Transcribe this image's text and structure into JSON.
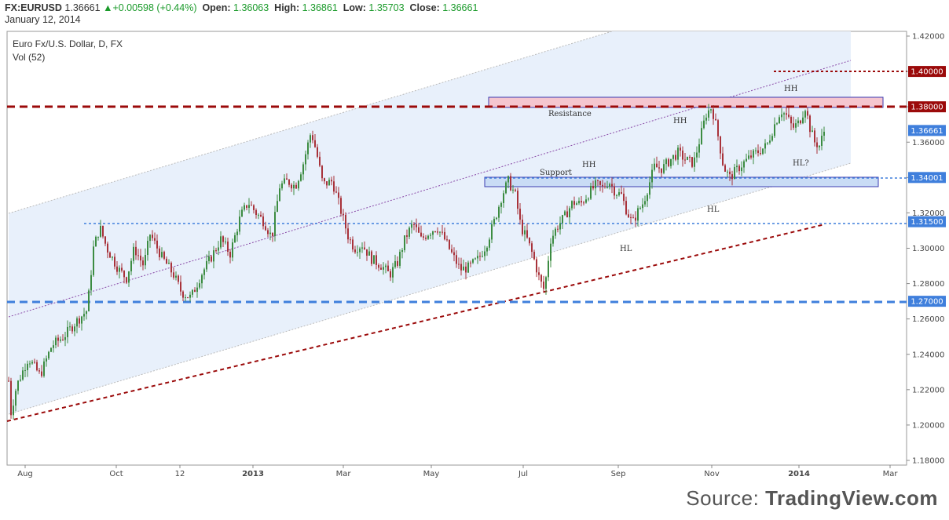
{
  "header": {
    "symbol": "FX:EURUSD",
    "last": "1.36661",
    "change": "+0.00598 (+0.44%)",
    "change_arrow": "▲",
    "open_label": "Open:",
    "open": "1.36063",
    "high_label": "High:",
    "high": "1.36861",
    "low_label": "Low:",
    "low": "1.35703",
    "close_label": "Close:",
    "close": "1.36661",
    "date": "January 12, 2014"
  },
  "legend": {
    "title": "Euro Fx/U.S. Dollar, D, FX",
    "indicator": "Vol (52)"
  },
  "source": {
    "prefix": "Source: ",
    "brand": "TradingView.com"
  },
  "colors": {
    "up": "#1a9a2a",
    "candle_up": "#3c8c42",
    "candle_down": "#a8323a",
    "channel_fill": "#e8f0fb",
    "resistance_zone": "#f5c6cf",
    "support_zone": "#c9dcf5",
    "dark_red": "#9b0a0a",
    "blue": "#3f7fdc"
  },
  "chart_data": {
    "type": "candlestick",
    "instrument": "EURUSD",
    "timeframe": "D",
    "ylim": [
      1.18,
      1.42
    ],
    "y_ticks": [
      "1.42000",
      "1.40000",
      "1.38000",
      "1.36000",
      "1.34000",
      "1.32000",
      "1.30000",
      "1.28000",
      "1.26000",
      "1.24000",
      "1.22000",
      "1.20000",
      "1.18000"
    ],
    "x_ticks": [
      "Aug",
      "Oct",
      "12",
      "2013",
      "Mar",
      "May",
      "Jul",
      "Sep",
      "Nov",
      "2014",
      "Mar"
    ],
    "price_labels": [
      {
        "text": "1.40000",
        "value": 1.4,
        "style": "dark-red"
      },
      {
        "text": "1.38000",
        "value": 1.38,
        "style": "dark-red"
      },
      {
        "text": "1.36661",
        "value": 1.36661,
        "style": "blue"
      },
      {
        "text": "1.34001",
        "value": 1.34001,
        "style": "blue"
      },
      {
        "text": "1.31500",
        "value": 1.315,
        "style": "blue"
      },
      {
        "text": "1.27000",
        "value": 1.27,
        "style": "blue"
      }
    ],
    "horizontal_lines": [
      {
        "value": 1.38,
        "style": "dark-red-dashed-thick"
      },
      {
        "value": 1.4,
        "style": "dark-red-dotted"
      },
      {
        "value": 1.34001,
        "style": "blue-dashed"
      },
      {
        "value": 1.315,
        "style": "blue-dashed"
      },
      {
        "value": 1.27,
        "style": "blue-dashed-thick"
      }
    ],
    "zones": [
      {
        "name": "Resistance",
        "from": 1.38,
        "to": 1.386
      },
      {
        "name": "Support",
        "from": 1.336,
        "to": 1.342
      }
    ],
    "annotations": [
      "Resistance",
      "Support",
      "HH",
      "HH",
      "HH",
      "HL",
      "HL",
      "HL?"
    ],
    "price_path": [
      [
        0,
        1.225
      ],
      [
        2,
        1.205
      ],
      [
        10,
        1.222
      ],
      [
        25,
        1.238
      ],
      [
        40,
        1.228
      ],
      [
        55,
        1.245
      ],
      [
        70,
        1.25
      ],
      [
        85,
        1.258
      ],
      [
        100,
        1.265
      ],
      [
        108,
        1.3
      ],
      [
        116,
        1.312
      ],
      [
        125,
        1.3
      ],
      [
        140,
        1.288
      ],
      [
        150,
        1.283
      ],
      [
        160,
        1.3
      ],
      [
        172,
        1.29
      ],
      [
        180,
        1.308
      ],
      [
        195,
        1.295
      ],
      [
        210,
        1.285
      ],
      [
        220,
        1.275
      ],
      [
        232,
        1.272
      ],
      [
        245,
        1.285
      ],
      [
        258,
        1.295
      ],
      [
        270,
        1.305
      ],
      [
        282,
        1.297
      ],
      [
        295,
        1.318
      ],
      [
        305,
        1.326
      ],
      [
        315,
        1.32
      ],
      [
        325,
        1.315
      ],
      [
        335,
        1.306
      ],
      [
        345,
        1.335
      ],
      [
        355,
        1.338
      ],
      [
        365,
        1.335
      ],
      [
        375,
        1.348
      ],
      [
        385,
        1.366
      ],
      [
        392,
        1.354
      ],
      [
        400,
        1.336
      ],
      [
        412,
        1.338
      ],
      [
        425,
        1.318
      ],
      [
        432,
        1.307
      ],
      [
        440,
        1.3
      ],
      [
        450,
        1.302
      ],
      [
        462,
        1.294
      ],
      [
        475,
        1.29
      ],
      [
        485,
        1.285
      ],
      [
        495,
        1.292
      ],
      [
        505,
        1.306
      ],
      [
        515,
        1.314
      ],
      [
        525,
        1.305
      ],
      [
        535,
        1.309
      ],
      [
        545,
        1.312
      ],
      [
        555,
        1.305
      ],
      [
        565,
        1.296
      ],
      [
        575,
        1.288
      ],
      [
        585,
        1.289
      ],
      [
        598,
        1.294
      ],
      [
        608,
        1.302
      ],
      [
        618,
        1.315
      ],
      [
        628,
        1.33
      ],
      [
        636,
        1.338
      ],
      [
        645,
        1.33
      ],
      [
        652,
        1.312
      ],
      [
        660,
        1.305
      ],
      [
        668,
        1.295
      ],
      [
        676,
        1.282
      ],
      [
        682,
        1.276
      ],
      [
        690,
        1.305
      ],
      [
        698,
        1.312
      ],
      [
        708,
        1.318
      ],
      [
        718,
        1.326
      ],
      [
        728,
        1.325
      ],
      [
        740,
        1.332
      ],
      [
        748,
        1.336
      ],
      [
        756,
        1.334
      ],
      [
        764,
        1.338
      ],
      [
        772,
        1.332
      ],
      [
        780,
        1.33
      ],
      [
        786,
        1.322
      ],
      [
        794,
        1.314
      ],
      [
        800,
        1.32
      ],
      [
        808,
        1.326
      ],
      [
        815,
        1.336
      ],
      [
        822,
        1.346
      ],
      [
        832,
        1.345
      ],
      [
        842,
        1.35
      ],
      [
        852,
        1.354
      ],
      [
        862,
        1.35
      ],
      [
        872,
        1.348
      ],
      [
        880,
        1.362
      ],
      [
        888,
        1.376
      ],
      [
        895,
        1.38
      ],
      [
        902,
        1.366
      ],
      [
        910,
        1.346
      ],
      [
        918,
        1.34
      ],
      [
        926,
        1.344
      ],
      [
        935,
        1.348
      ],
      [
        945,
        1.352
      ],
      [
        955,
        1.355
      ],
      [
        965,
        1.358
      ],
      [
        975,
        1.37
      ],
      [
        983,
        1.378
      ],
      [
        990,
        1.375
      ],
      [
        998,
        1.368
      ],
      [
        1006,
        1.371
      ],
      [
        1014,
        1.38
      ],
      [
        1020,
        1.368
      ],
      [
        1026,
        1.36
      ],
      [
        1032,
        1.358
      ],
      [
        1038,
        1.366
      ]
    ]
  }
}
